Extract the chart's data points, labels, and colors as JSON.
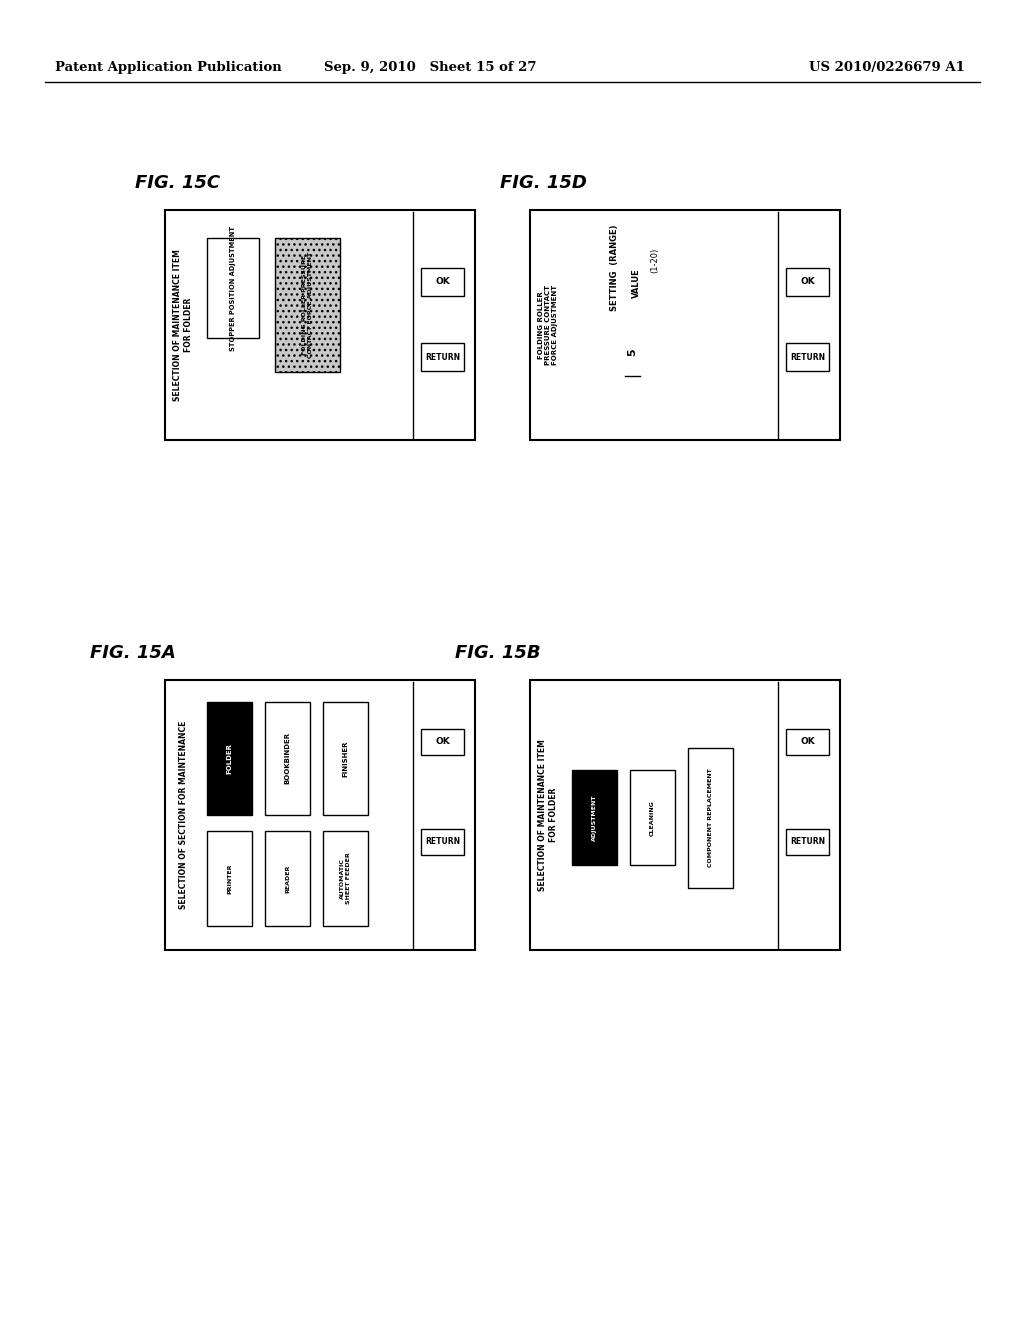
{
  "header_left": "Patent Application Publication",
  "header_mid": "Sep. 9, 2010   Sheet 15 of 27",
  "header_right": "US 2010/0226679 A1",
  "bg_color": "#ffffff"
}
